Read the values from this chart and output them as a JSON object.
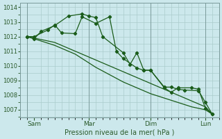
{
  "xlabel": "Pression niveau de la mer( hPa )",
  "bg_color": "#cce8ec",
  "grid_color": "#aacccc",
  "line_color": "#1a5c1a",
  "ylim": [
    1006.5,
    1014.3
  ],
  "yticks": [
    1007,
    1008,
    1009,
    1010,
    1011,
    1012,
    1013,
    1014
  ],
  "xlim": [
    0,
    14.5
  ],
  "xtick_day_positions": [
    1.0,
    5.0,
    9.5,
    13.5
  ],
  "xtick_day_labels": [
    "Sam",
    "Mar",
    "Dim",
    "Lun"
  ],
  "vline_positions": [
    0.5,
    5.0,
    9.5,
    13.5
  ],
  "series1_x": [
    0.5,
    1.0,
    1.5,
    2.0,
    2.5,
    3.0,
    3.5,
    4.0,
    4.5,
    5.0,
    5.5,
    6.0,
    6.5,
    7.0,
    7.5,
    8.0,
    8.5,
    9.0,
    9.5,
    10.0,
    10.5,
    11.0,
    11.5,
    12.0,
    12.5,
    13.0,
    13.5,
    14.0
  ],
  "series1_y": [
    1012.0,
    1011.9,
    1011.8,
    1011.7,
    1011.6,
    1011.4,
    1011.2,
    1011.0,
    1010.8,
    1010.6,
    1010.4,
    1010.2,
    1010.0,
    1009.8,
    1009.6,
    1009.4,
    1009.2,
    1009.0,
    1008.8,
    1008.6,
    1008.4,
    1008.2,
    1008.0,
    1007.8,
    1007.6,
    1007.4,
    1007.2,
    1006.7
  ],
  "series2_x": [
    0.5,
    1.0,
    1.5,
    2.0,
    2.5,
    3.0,
    3.5,
    4.0,
    4.5,
    5.0,
    5.5,
    6.0,
    6.5,
    7.0,
    7.5,
    8.0,
    8.5,
    9.0,
    9.5,
    10.0,
    10.5,
    11.0,
    11.5,
    12.0,
    12.5,
    13.0,
    13.5,
    14.0
  ],
  "series2_y": [
    1012.0,
    1011.85,
    1011.7,
    1011.55,
    1011.4,
    1011.2,
    1011.0,
    1010.8,
    1010.5,
    1010.2,
    1009.9,
    1009.65,
    1009.4,
    1009.15,
    1008.9,
    1008.7,
    1008.5,
    1008.3,
    1008.1,
    1007.95,
    1007.8,
    1007.65,
    1007.5,
    1007.35,
    1007.2,
    1007.1,
    1007.0,
    1006.7
  ],
  "series3_x": [
    0.5,
    1.0,
    1.5,
    2.5,
    3.5,
    4.5,
    5.0,
    5.5,
    6.0,
    7.5,
    8.0,
    8.5,
    9.0,
    9.5,
    10.5,
    11.0,
    11.5,
    12.0,
    13.0,
    13.5,
    14.0
  ],
  "series3_y": [
    1012.0,
    1011.85,
    1012.35,
    1012.75,
    1013.4,
    1013.55,
    1013.4,
    1013.3,
    1012.0,
    1010.9,
    1010.1,
    1010.9,
    1009.7,
    1009.7,
    1008.55,
    1008.55,
    1008.4,
    1008.35,
    1008.3,
    1007.5,
    1006.7
  ],
  "series4_x": [
    0.5,
    1.0,
    2.0,
    2.5,
    3.0,
    4.0,
    4.5,
    5.5,
    6.5,
    7.0,
    7.5,
    8.5,
    9.0,
    9.5,
    10.5,
    11.0,
    11.5,
    12.5,
    13.0,
    13.5,
    14.0
  ],
  "series4_y": [
    1012.0,
    1012.0,
    1012.45,
    1012.8,
    1012.25,
    1012.2,
    1013.35,
    1012.9,
    1013.35,
    1011.0,
    1010.5,
    1009.85,
    1009.7,
    1009.7,
    1008.5,
    1008.2,
    1008.5,
    1008.5,
    1008.4,
    1007.1,
    1006.7
  ]
}
